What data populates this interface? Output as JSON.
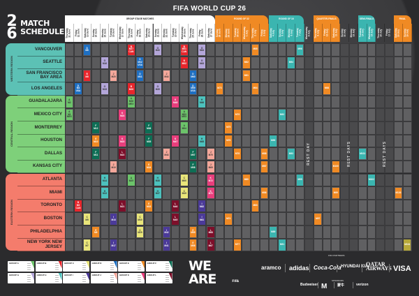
{
  "title": "FIFA WORLD CUP 26",
  "logo": {
    "number_top": "2",
    "number_bottom": "6",
    "line1": "MATCH",
    "line2": "SCHEDULE",
    "emblem": "FIFA"
  },
  "group_stage": {
    "label": "GROUP STAGE MATCHES",
    "dates": [
      {
        "weekday": "Thursday",
        "date": "11 June"
      },
      {
        "weekday": "Friday",
        "date": "12 June"
      },
      {
        "weekday": "Saturday",
        "date": "13 June"
      },
      {
        "weekday": "Sunday",
        "date": "14 June"
      },
      {
        "weekday": "Monday",
        "date": "15 June"
      },
      {
        "weekday": "Tuesday",
        "date": "16 June"
      },
      {
        "weekday": "Wednesday",
        "date": "17 June"
      },
      {
        "weekday": "Thursday",
        "date": "18 June"
      },
      {
        "weekday": "Friday",
        "date": "19 June"
      },
      {
        "weekday": "Saturday",
        "date": "20 June"
      },
      {
        "weekday": "Sunday",
        "date": "21 June"
      },
      {
        "weekday": "Monday",
        "date": "22 June"
      },
      {
        "weekday": "Tuesday",
        "date": "23 June"
      },
      {
        "weekday": "Wednesday",
        "date": "24 June"
      },
      {
        "weekday": "Thursday",
        "date": "25 June"
      },
      {
        "weekday": "Friday",
        "date": "26 June"
      },
      {
        "weekday": "Saturday",
        "date": "27 June"
      }
    ]
  },
  "knockout": [
    {
      "label": "ROUND OF 32",
      "color": "#f08a24",
      "dates": [
        {
          "weekday": "Sunday",
          "date": "28 June"
        },
        {
          "weekday": "Monday",
          "date": "29 June"
        },
        {
          "weekday": "Tuesday",
          "date": "30 June"
        },
        {
          "weekday": "Wednesday",
          "date": "1 July"
        },
        {
          "weekday": "Thursday",
          "date": "2 July"
        },
        {
          "weekday": "Friday",
          "date": "3 July"
        }
      ]
    },
    {
      "label": "ROUND OF 16",
      "color": "#3bb5b0",
      "dates": [
        {
          "weekday": "Saturday",
          "date": "4 July"
        },
        {
          "weekday": "Sunday",
          "date": "5 July"
        },
        {
          "weekday": "Monday",
          "date": "6 July"
        },
        {
          "weekday": "Tuesday",
          "date": "7 July"
        }
      ]
    },
    {
      "label": "",
      "color": "",
      "rest": true,
      "dates": [
        {
          "weekday": "Wednesday",
          "date": "8 July"
        }
      ]
    },
    {
      "label": "QUARTER-FINALS",
      "color": "#f08a24",
      "dates": [
        {
          "weekday": "Thursday",
          "date": "9 July"
        },
        {
          "weekday": "Friday",
          "date": "10 July"
        },
        {
          "weekday": "Saturday",
          "date": "11 July"
        }
      ]
    },
    {
      "label": "",
      "color": "",
      "rest": true,
      "dates": [
        {
          "weekday": "Sunday",
          "date": "12 July"
        },
        {
          "weekday": "Monday",
          "date": "13 July"
        }
      ]
    },
    {
      "label": "SEMI-FINALS",
      "color": "#3bb5b0",
      "dates": [
        {
          "weekday": "Tuesday",
          "date": "14 July"
        },
        {
          "weekday": "Wednesday",
          "date": "15 July"
        }
      ]
    },
    {
      "label": "",
      "color": "",
      "rest": true,
      "dates": [
        {
          "weekday": "Thursday",
          "date": "16 July"
        },
        {
          "weekday": "Friday",
          "date": "17 July"
        }
      ]
    },
    {
      "label": "FINAL",
      "color": "#f08a24",
      "dates": [
        {
          "weekday": "Saturday",
          "date": "18 July"
        },
        {
          "weekday": "Sunday",
          "date": "19 July"
        }
      ]
    }
  ],
  "rest_labels": [
    {
      "text": "REST DAY",
      "dates": [
        "8 July"
      ]
    },
    {
      "text": "REST DAYS",
      "dates": [
        "12 July",
        "13 July"
      ]
    },
    {
      "text": "REST DAYS",
      "dates": [
        "16 July",
        "17 July"
      ]
    }
  ],
  "group_colors": {
    "A": "#6cc36a",
    "B": "#e8262c",
    "C": "#e9e57a",
    "D": "#1e6fc2",
    "E": "#f08a24",
    "F": "#0e6e55",
    "G": "#b3a6d9",
    "H": "#4cc1bd",
    "I": "#4b3a99",
    "J": "#f4a79a",
    "K": "#e83e7c",
    "L": "#7d0f2a",
    "R32": "#f08a24",
    "R16": "#3bb5b0",
    "QF": "#f08a24",
    "SF": "#3bb5b0",
    "3RD": "#f08a24",
    "FINAL": "#b7a93a"
  },
  "regions": [
    {
      "label": "WESTERN REGION",
      "color": "#5cc1b5",
      "rows": 4
    },
    {
      "label": "CENTRAL REGION",
      "color": "#7ed07a",
      "rows": 6
    },
    {
      "label": "EASTERN REGION",
      "color": "#f47c6c",
      "rows": 6
    }
  ],
  "cities": [
    {
      "name": "VANCOUVER",
      "matches": [
        {
          "d": "13 June",
          "g": "D",
          "m": "M6"
        },
        {
          "d": "18 June",
          "g": "B",
          "m": "M27",
          "t": "CAN"
        },
        {
          "d": "21 June",
          "g": "G",
          "m": "M40"
        },
        {
          "d": "24 June",
          "g": "B",
          "m": "M51",
          "t": "CAN"
        },
        {
          "d": "26 June",
          "g": "G",
          "m": "M64"
        },
        {
          "d": "2 July",
          "g": "R32",
          "m": "M85"
        },
        {
          "d": "7 July",
          "g": "R16",
          "m": "M96"
        }
      ]
    },
    {
      "name": "SEATTLE",
      "matches": [
        {
          "d": "15 June",
          "g": "G",
          "m": "M16"
        },
        {
          "d": "19 June",
          "g": "D",
          "m": "M32",
          "t": "USA"
        },
        {
          "d": "24 June",
          "g": "B",
          "m": "M52"
        },
        {
          "d": "26 June",
          "g": "G",
          "m": "M63"
        },
        {
          "d": "1 July",
          "g": "R32",
          "m": "M82"
        },
        {
          "d": "6 July",
          "g": "R16",
          "m": "M94"
        }
      ]
    },
    {
      "name": "SAN FRANCISCO BAY AREA",
      "matches": [
        {
          "d": "13 June",
          "g": "B",
          "m": "M8"
        },
        {
          "d": "16 June",
          "g": "J",
          "m": "M20"
        },
        {
          "d": "19 June",
          "g": "D",
          "m": "M31"
        },
        {
          "d": "22 June",
          "g": "J",
          "m": "M44"
        },
        {
          "d": "25 June",
          "g": "D",
          "m": "M60"
        },
        {
          "d": "1 July",
          "g": "R32",
          "m": "M81"
        }
      ]
    },
    {
      "name": "LOS ANGELES",
      "matches": [
        {
          "d": "12 June",
          "g": "D",
          "m": "M4",
          "t": "USA"
        },
        {
          "d": "15 June",
          "g": "G",
          "m": "M15"
        },
        {
          "d": "18 June",
          "g": "B",
          "m": "M26"
        },
        {
          "d": "21 June",
          "g": "G",
          "m": "M39"
        },
        {
          "d": "25 June",
          "g": "D",
          "m": "M59",
          "t": "USA"
        },
        {
          "d": "28 June",
          "g": "R32",
          "m": "M73"
        },
        {
          "d": "2 July",
          "g": "R32",
          "m": "M84"
        },
        {
          "d": "10 July",
          "g": "QF",
          "m": "M98"
        }
      ]
    },
    {
      "name": "GUADALAJARA",
      "matches": [
        {
          "d": "11 June",
          "g": "A",
          "m": "M2"
        },
        {
          "d": "18 June",
          "g": "A",
          "m": "M28",
          "t": "MEX"
        },
        {
          "d": "23 June",
          "g": "K",
          "m": "M48"
        },
        {
          "d": "26 June",
          "g": "H",
          "m": "M66"
        }
      ]
    },
    {
      "name": "MEXICO CITY",
      "matches": [
        {
          "d": "11 June",
          "g": "A",
          "m": "M1",
          "t": "MEX"
        },
        {
          "d": "17 June",
          "g": "K",
          "m": "M24"
        },
        {
          "d": "24 June",
          "g": "A",
          "m": "M53",
          "t": "MEX"
        },
        {
          "d": "30 June",
          "g": "R32",
          "m": "M79"
        },
        {
          "d": "5 July",
          "g": "R16",
          "m": "M92"
        }
      ]
    },
    {
      "name": "MONTERREY",
      "matches": [
        {
          "d": "14 June",
          "g": "F",
          "m": "M12"
        },
        {
          "d": "20 June",
          "g": "F",
          "m": "M36"
        },
        {
          "d": "24 June",
          "g": "A",
          "m": "M54"
        },
        {
          "d": "29 June",
          "g": "R32",
          "m": "M75"
        }
      ]
    },
    {
      "name": "HOUSTON",
      "matches": [
        {
          "d": "14 June",
          "g": "E",
          "m": "M10"
        },
        {
          "d": "17 June",
          "g": "K",
          "m": "M23"
        },
        {
          "d": "20 June",
          "g": "F",
          "m": "M35"
        },
        {
          "d": "23 June",
          "g": "K",
          "m": "M47"
        },
        {
          "d": "26 June",
          "g": "H",
          "m": "M65"
        },
        {
          "d": "29 June",
          "g": "R32",
          "m": "M76"
        },
        {
          "d": "4 July",
          "g": "R16",
          "m": "M90"
        }
      ]
    },
    {
      "name": "DALLAS",
      "matches": [
        {
          "d": "14 June",
          "g": "F",
          "m": "M11"
        },
        {
          "d": "17 June",
          "g": "L",
          "m": "M22"
        },
        {
          "d": "22 June",
          "g": "J",
          "m": "M43"
        },
        {
          "d": "25 June",
          "g": "F",
          "m": "M57"
        },
        {
          "d": "27 June",
          "g": "J",
          "m": "M70"
        },
        {
          "d": "30 June",
          "g": "R32",
          "m": "M78"
        },
        {
          "d": "3 July",
          "g": "R32",
          "m": "M88"
        },
        {
          "d": "6 July",
          "g": "R16",
          "m": "M93"
        },
        {
          "d": "14 July",
          "g": "SF",
          "m": "M101"
        }
      ]
    },
    {
      "name": "KANSAS CITY",
      "matches": [
        {
          "d": "16 June",
          "g": "J",
          "m": "M19"
        },
        {
          "d": "20 June",
          "g": "E",
          "m": "M34"
        },
        {
          "d": "25 June",
          "g": "F",
          "m": "M58"
        },
        {
          "d": "27 June",
          "g": "J",
          "m": "M69"
        },
        {
          "d": "3 July",
          "g": "R32",
          "m": "M87"
        },
        {
          "d": "11 July",
          "g": "QF",
          "m": "M100"
        }
      ]
    },
    {
      "name": "ATLANTA",
      "matches": [
        {
          "d": "15 June",
          "g": "H",
          "m": "M14"
        },
        {
          "d": "18 June",
          "g": "A",
          "m": "M25"
        },
        {
          "d": "21 June",
          "g": "H",
          "m": "M38"
        },
        {
          "d": "24 June",
          "g": "C",
          "m": "M50"
        },
        {
          "d": "27 June",
          "g": "K",
          "m": "M72"
        },
        {
          "d": "1 July",
          "g": "R32",
          "m": "M80"
        },
        {
          "d": "7 July",
          "g": "R16",
          "m": "M95"
        },
        {
          "d": "15 July",
          "g": "SF",
          "m": "M102"
        }
      ]
    },
    {
      "name": "MIAMI",
      "matches": [
        {
          "d": "15 June",
          "g": "H",
          "m": "M13"
        },
        {
          "d": "21 June",
          "g": "H",
          "m": "M37"
        },
        {
          "d": "24 June",
          "g": "C",
          "m": "M49"
        },
        {
          "d": "27 June",
          "g": "K",
          "m": "M71"
        },
        {
          "d": "3 July",
          "g": "R32",
          "m": "M86"
        },
        {
          "d": "11 July",
          "g": "QF",
          "m": "M99"
        },
        {
          "d": "18 July",
          "g": "3RD",
          "m": "M103"
        }
      ]
    },
    {
      "name": "TORONTO",
      "matches": [
        {
          "d": "12 June",
          "g": "B",
          "m": "M3",
          "t": "CAN"
        },
        {
          "d": "17 June",
          "g": "L",
          "m": "M21"
        },
        {
          "d": "20 June",
          "g": "E",
          "m": "M33"
        },
        {
          "d": "23 June",
          "g": "L",
          "m": "M46"
        },
        {
          "d": "26 June",
          "g": "I",
          "m": "M62"
        },
        {
          "d": "2 July",
          "g": "R32",
          "m": "M83"
        }
      ]
    },
    {
      "name": "BOSTON",
      "matches": [
        {
          "d": "13 June",
          "g": "C",
          "m": "M5"
        },
        {
          "d": "16 June",
          "g": "I",
          "m": "M18"
        },
        {
          "d": "19 June",
          "g": "C",
          "m": "M30"
        },
        {
          "d": "23 June",
          "g": "L",
          "m": "M45"
        },
        {
          "d": "26 June",
          "g": "I",
          "m": "M61"
        },
        {
          "d": "29 June",
          "g": "R32",
          "m": "M74"
        },
        {
          "d": "9 July",
          "g": "QF",
          "m": "M97"
        }
      ]
    },
    {
      "name": "PHILADELPHIA",
      "matches": [
        {
          "d": "14 June",
          "g": "E",
          "m": "M9"
        },
        {
          "d": "19 June",
          "g": "C",
          "m": "M29"
        },
        {
          "d": "22 June",
          "g": "I",
          "m": "M42"
        },
        {
          "d": "25 June",
          "g": "E",
          "m": "M55"
        },
        {
          "d": "27 June",
          "g": "L",
          "m": "M68"
        },
        {
          "d": "4 July",
          "g": "R16",
          "m": "M89"
        }
      ]
    },
    {
      "name": "NEW YORK NEW JERSEY",
      "matches": [
        {
          "d": "13 June",
          "g": "C",
          "m": "M7"
        },
        {
          "d": "16 June",
          "g": "I",
          "m": "M17"
        },
        {
          "d": "22 June",
          "g": "I",
          "m": "M41"
        },
        {
          "d": "25 June",
          "g": "E",
          "m": "M56"
        },
        {
          "d": "27 June",
          "g": "L",
          "m": "M67"
        },
        {
          "d": "30 June",
          "g": "R32",
          "m": "M77"
        },
        {
          "d": "5 July",
          "g": "R16",
          "m": "M91"
        },
        {
          "d": "19 July",
          "g": "FINAL",
          "m": "M104"
        }
      ]
    }
  ],
  "groups_legend": [
    {
      "label": "GROUP A",
      "g": "A"
    },
    {
      "label": "GROUP B",
      "g": "B"
    },
    {
      "label": "GROUP C",
      "g": "C"
    },
    {
      "label": "GROUP D",
      "g": "D"
    },
    {
      "label": "GROUP E",
      "g": "E"
    },
    {
      "label": "GROUP F",
      "g": "F"
    },
    {
      "label": "GROUP G",
      "g": "G"
    },
    {
      "label": "GROUP H",
      "g": "H"
    },
    {
      "label": "GROUP I",
      "g": "I"
    },
    {
      "label": "GROUP J",
      "g": "J"
    },
    {
      "label": "GROUP K",
      "g": "K"
    },
    {
      "label": "GROUP L",
      "g": "L"
    }
  ],
  "campaign": {
    "line1": "WE",
    "line2": "ARE",
    "mark": "FIFA"
  },
  "sponsors": {
    "top_label": "FIFA PARTNERS",
    "top": [
      "aramco",
      "adidas",
      "Coca-Cola",
      "HYUNDAI KIA",
      "QATAR AIRWAYS",
      "VISA"
    ],
    "bottom_label": "SPONSORS",
    "bottom": [
      "Budweiser",
      "M",
      "蒙牛",
      "verizon"
    ]
  }
}
